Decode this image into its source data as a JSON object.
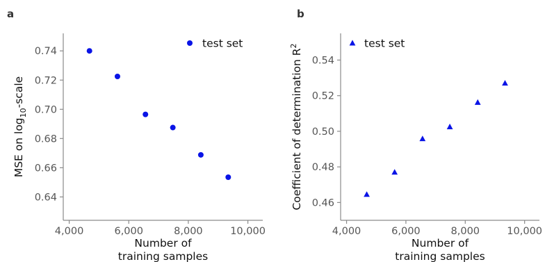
{
  "colors": {
    "marker": "#0a14e6",
    "axis": "#8a8a8a",
    "tick_text": "#555555",
    "label_text": "#111111"
  },
  "chart_data": [
    {
      "panel": "a",
      "type": "scatter",
      "marker": "circle",
      "xlabel_line1": "Number of",
      "xlabel_line2": "training samples",
      "ylabel_main": "MSE on log",
      "ylabel_sub": "10",
      "ylabel_tail": "-scale",
      "xlim": [
        3800,
        10500
      ],
      "ylim": [
        0.624,
        0.752
      ],
      "x_ticks": [
        4000,
        6000,
        8000,
        10000
      ],
      "x_tick_labels": [
        "4,000",
        "6,000",
        "8,000",
        "10,000"
      ],
      "y_ticks": [
        0.64,
        0.66,
        0.68,
        0.7,
        0.72,
        0.74
      ],
      "y_tick_labels": [
        "0.64",
        "0.66",
        "0.68",
        "0.70",
        "0.72",
        "0.74"
      ],
      "legend_position": "top-right",
      "series": [
        {
          "name": "test set",
          "x": [
            4680,
            5620,
            6560,
            7480,
            8420,
            9340
          ],
          "y": [
            0.74,
            0.7225,
            0.6965,
            0.6875,
            0.6688,
            0.6535
          ]
        }
      ]
    },
    {
      "panel": "b",
      "type": "scatter",
      "marker": "triangle",
      "xlabel_line1": "Number of",
      "xlabel_line2": "training samples",
      "ylabel_main": "Coefficient of determination R",
      "ylabel_sup": "2",
      "xlim": [
        3800,
        10500
      ],
      "ylim": [
        0.45,
        0.555
      ],
      "x_ticks": [
        4000,
        6000,
        8000,
        10000
      ],
      "x_tick_labels": [
        "4,000",
        "6,000",
        "8,000",
        "10,000"
      ],
      "y_ticks": [
        0.46,
        0.48,
        0.5,
        0.52,
        0.54
      ],
      "y_tick_labels": [
        "0.46",
        "0.48",
        "0.50",
        "0.52",
        "0.54"
      ],
      "legend_position": "top-left",
      "series": [
        {
          "name": "test set",
          "x": [
            4680,
            5620,
            6560,
            7480,
            8420,
            9340
          ],
          "y": [
            0.4645,
            0.477,
            0.4958,
            0.5025,
            0.5162,
            0.527
          ]
        }
      ]
    }
  ]
}
